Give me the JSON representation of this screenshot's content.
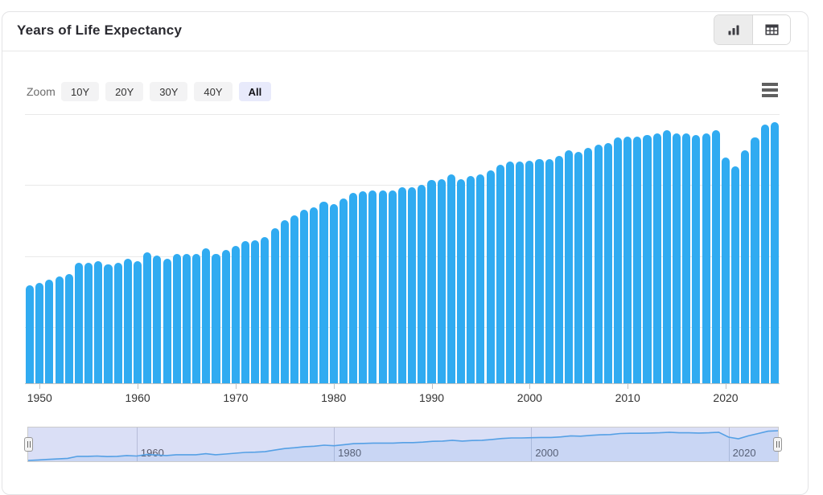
{
  "header": {
    "title": "Years of Life Expectancy"
  },
  "view_toggle": {
    "options": [
      {
        "name": "chart",
        "icon": "column-chart-icon",
        "active": true
      },
      {
        "name": "table",
        "icon": "table-icon",
        "active": false
      }
    ]
  },
  "toolbar": {
    "zoom_label": "Zoom",
    "range_buttons": [
      {
        "label": "10Y",
        "active": false
      },
      {
        "label": "20Y",
        "active": false
      },
      {
        "label": "30Y",
        "active": false
      },
      {
        "label": "40Y",
        "active": false
      },
      {
        "label": "All",
        "active": true
      }
    ],
    "active_button_color": "#e8eafb",
    "menu_icon": "hamburger-menu-icon"
  },
  "chart_data": {
    "type": "bar",
    "title": "Years of Life Expectancy",
    "xlabel": "",
    "ylabel": "",
    "x": [
      1949,
      1950,
      1951,
      1952,
      1953,
      1954,
      1955,
      1956,
      1957,
      1958,
      1959,
      1960,
      1961,
      1962,
      1963,
      1964,
      1965,
      1966,
      1967,
      1968,
      1969,
      1970,
      1971,
      1972,
      1973,
      1974,
      1975,
      1976,
      1977,
      1978,
      1979,
      1980,
      1981,
      1982,
      1983,
      1984,
      1985,
      1986,
      1987,
      1988,
      1989,
      1990,
      1991,
      1992,
      1993,
      1994,
      1995,
      1996,
      1997,
      1998,
      1999,
      2000,
      2001,
      2002,
      2003,
      2004,
      2005,
      2006,
      2007,
      2008,
      2009,
      2010,
      2011,
      2012,
      2013,
      2014,
      2015,
      2016,
      2017,
      2018,
      2019,
      2020,
      2021,
      2022,
      2023,
      2024,
      2025
    ],
    "series": [
      {
        "name": "Years of Life Expectancy",
        "values": [
          68.0,
          68.2,
          68.4,
          68.6,
          68.8,
          69.6,
          69.6,
          69.7,
          69.5,
          69.6,
          69.9,
          69.7,
          70.3,
          70.1,
          69.9,
          70.2,
          70.2,
          70.2,
          70.6,
          70.2,
          70.5,
          70.8,
          71.1,
          71.2,
          71.4,
          72.0,
          72.6,
          72.9,
          73.3,
          73.5,
          73.9,
          73.7,
          74.1,
          74.5,
          74.6,
          74.7,
          74.7,
          74.7,
          74.9,
          74.9,
          75.1,
          75.4,
          75.5,
          75.8,
          75.5,
          75.7,
          75.8,
          76.1,
          76.5,
          76.7,
          76.7,
          76.8,
          76.9,
          76.9,
          77.1,
          77.5,
          77.4,
          77.7,
          77.9,
          78.0,
          78.4,
          78.5,
          78.5,
          78.6,
          78.7,
          78.9,
          78.7,
          78.7,
          78.6,
          78.7,
          78.9,
          77.0,
          76.4,
          77.5,
          78.4,
          79.3,
          79.5
        ]
      }
    ],
    "x_ticks": [
      1950,
      1960,
      1970,
      1980,
      1990,
      2000,
      2010,
      2020
    ],
    "y_gridlines": [
      65,
      70,
      75,
      80
    ],
    "ylim": [
      61.1,
      80.0
    ],
    "grid": true,
    "legend": false,
    "bar_color": "#30ABF1"
  },
  "navigator": {
    "range": [
      1949,
      2025
    ],
    "tick_years": [
      1960,
      1980,
      2000,
      2020
    ],
    "tick_labels": [
      "1960",
      "1980",
      "2000",
      "2020"
    ],
    "colors": {
      "mask": "#dadff6",
      "line": "#55a0e5",
      "outline": "#cbcbcb",
      "gridline": "#b6bcd9"
    }
  }
}
